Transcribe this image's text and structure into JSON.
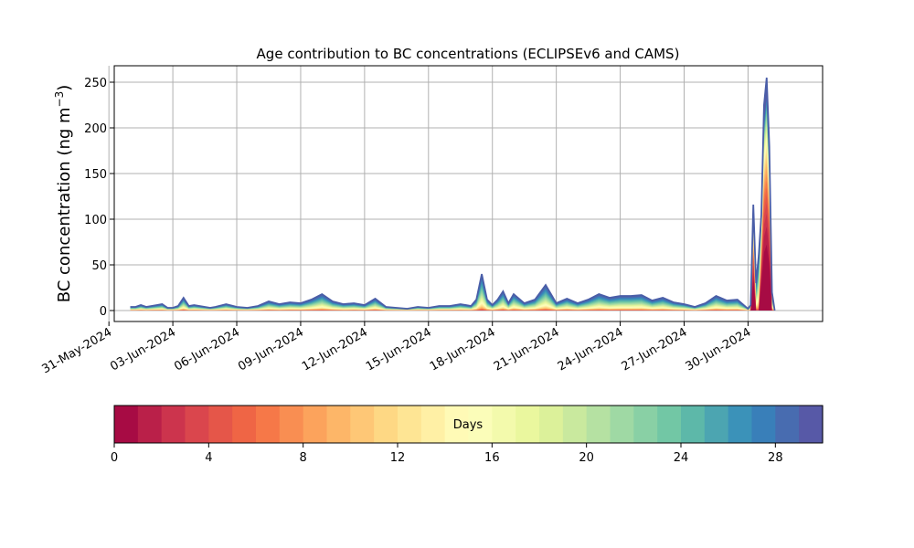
{
  "chart_data": {
    "type": "area",
    "stacked": true,
    "title": "Age contribution to BC concentrations (ECLIPSEv6 and CAMS)",
    "xlabel": "",
    "ylabel": "BC concentration (ng m",
    "ylabel_sup": "−3",
    "ylabel_close": ")",
    "x_axis_type": "date",
    "xlim": [
      "2024-05-31T06:00",
      "2024-07-03T12:00"
    ],
    "ylim": [
      -12,
      268
    ],
    "grid": true,
    "xtick_labels": [
      "31-May-2024",
      "03-Jun-2024",
      "06-Jun-2024",
      "09-Jun-2024",
      "12-Jun-2024",
      "15-Jun-2024",
      "18-Jun-2024",
      "21-Jun-2024",
      "24-Jun-2024",
      "27-Jun-2024",
      "30-Jun-2024"
    ],
    "xtick_dates": [
      "2024-05-31",
      "2024-06-03",
      "2024-06-06",
      "2024-06-09",
      "2024-06-12",
      "2024-06-15",
      "2024-06-18",
      "2024-06-21",
      "2024-06-24",
      "2024-06-27",
      "2024-06-30"
    ],
    "ytick_values": [
      0,
      50,
      100,
      150,
      200,
      250
    ],
    "ytick_labels": [
      "0",
      "50",
      "100",
      "150",
      "200",
      "250"
    ],
    "total_series": {
      "name": "total",
      "x": [
        "2024-06-01T00:00",
        "2024-06-01T06:00",
        "2024-06-01T12:00",
        "2024-06-01T18:00",
        "2024-06-02T00:00",
        "2024-06-02T06:00",
        "2024-06-02T12:00",
        "2024-06-02T18:00",
        "2024-06-03T00:00",
        "2024-06-03T06:00",
        "2024-06-03T12:00",
        "2024-06-03T18:00",
        "2024-06-04T00:00",
        "2024-06-04T06:00",
        "2024-06-04T12:00",
        "2024-06-04T18:00",
        "2024-06-05T00:00",
        "2024-06-05T12:00",
        "2024-06-06T00:00",
        "2024-06-06T12:00",
        "2024-06-07T00:00",
        "2024-06-07T12:00",
        "2024-06-08T00:00",
        "2024-06-08T12:00",
        "2024-06-09T00:00",
        "2024-06-09T12:00",
        "2024-06-10T00:00",
        "2024-06-10T12:00",
        "2024-06-11T00:00",
        "2024-06-11T12:00",
        "2024-06-12T00:00",
        "2024-06-12T12:00",
        "2024-06-13T00:00",
        "2024-06-13T12:00",
        "2024-06-14T00:00",
        "2024-06-14T12:00",
        "2024-06-15T00:00",
        "2024-06-15T12:00",
        "2024-06-16T00:00",
        "2024-06-16T12:00",
        "2024-06-17T00:00",
        "2024-06-17T06:00",
        "2024-06-17T12:00",
        "2024-06-17T18:00",
        "2024-06-18T00:00",
        "2024-06-18T06:00",
        "2024-06-18T12:00",
        "2024-06-18T18:00",
        "2024-06-19T00:00",
        "2024-06-19T12:00",
        "2024-06-20T00:00",
        "2024-06-20T12:00",
        "2024-06-20T18:00",
        "2024-06-21T00:00",
        "2024-06-21T12:00",
        "2024-06-22T00:00",
        "2024-06-22T12:00",
        "2024-06-23T00:00",
        "2024-06-23T12:00",
        "2024-06-24T00:00",
        "2024-06-24T12:00",
        "2024-06-25T00:00",
        "2024-06-25T12:00",
        "2024-06-26T00:00",
        "2024-06-26T12:00",
        "2024-06-27T00:00",
        "2024-06-27T12:00",
        "2024-06-28T00:00",
        "2024-06-28T12:00",
        "2024-06-29T00:00",
        "2024-06-29T12:00",
        "2024-06-30T00:00",
        "2024-06-30T03:00",
        "2024-06-30T06:00",
        "2024-06-30T09:00",
        "2024-06-30T12:00",
        "2024-06-30T15:00",
        "2024-06-30T18:00",
        "2024-06-30T21:00",
        "2024-07-01T00:00",
        "2024-07-01T03:00",
        "2024-07-01T06:00"
      ],
      "values": [
        4,
        4,
        6,
        4,
        5,
        6,
        7,
        3,
        3,
        5,
        14,
        5,
        6,
        5,
        4,
        3,
        4,
        7,
        4,
        3,
        5,
        10,
        7,
        9,
        8,
        12,
        18,
        10,
        7,
        8,
        6,
        13,
        4,
        3,
        2,
        4,
        3,
        5,
        5,
        7,
        5,
        12,
        40,
        12,
        6,
        12,
        21,
        8,
        18,
        8,
        12,
        28,
        18,
        8,
        13,
        8,
        12,
        18,
        14,
        16,
        16,
        17,
        11,
        14,
        9,
        7,
        4,
        8,
        16,
        11,
        12,
        2,
        6,
        116,
        30,
        60,
        105,
        225,
        255,
        180,
        20,
        0
      ]
    },
    "age_bins": {
      "colorbar_label": "Days",
      "range": [
        0,
        30
      ],
      "bin_width": 1,
      "tick_values": [
        0,
        4,
        8,
        12,
        16,
        20,
        24,
        28
      ],
      "tick_labels": [
        "0",
        "4",
        "8",
        "12",
        "16",
        "20",
        "24",
        "28"
      ],
      "colormap": "Spectral"
    },
    "colors": {
      "colormap_stops": [
        "#9e0142",
        "#d53e4f",
        "#f46d43",
        "#fdae61",
        "#fee08b",
        "#ffffbf",
        "#e6f598",
        "#abdda4",
        "#66c2a5",
        "#3288bd",
        "#5e4fa2"
      ],
      "grid": "#b0b0b0",
      "edge": "#4a5ea8"
    }
  }
}
